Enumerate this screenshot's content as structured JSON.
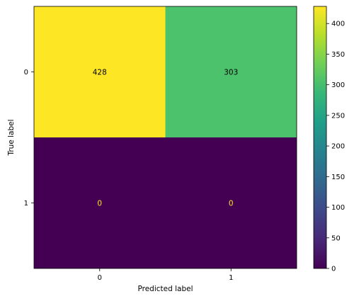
{
  "chart_data": {
    "type": "heatmap",
    "xlabel": "Predicted label",
    "ylabel": "True label",
    "x_categories": [
      "0",
      "1"
    ],
    "y_categories": [
      "0",
      "1"
    ],
    "values": [
      [
        428,
        303
      ],
      [
        0,
        0
      ]
    ],
    "colorbar": {
      "colormap": "viridis",
      "min": 0,
      "max": 428,
      "ticks": [
        0,
        50,
        100,
        150,
        200,
        250,
        300,
        350,
        400
      ]
    },
    "cell_colors": [
      [
        "#fde725",
        "#4cc26c"
      ],
      [
        "#440154",
        "#440154"
      ]
    ],
    "text_colors": [
      [
        "#000000",
        "#000000"
      ],
      [
        "#fde725",
        "#fde725"
      ]
    ]
  }
}
